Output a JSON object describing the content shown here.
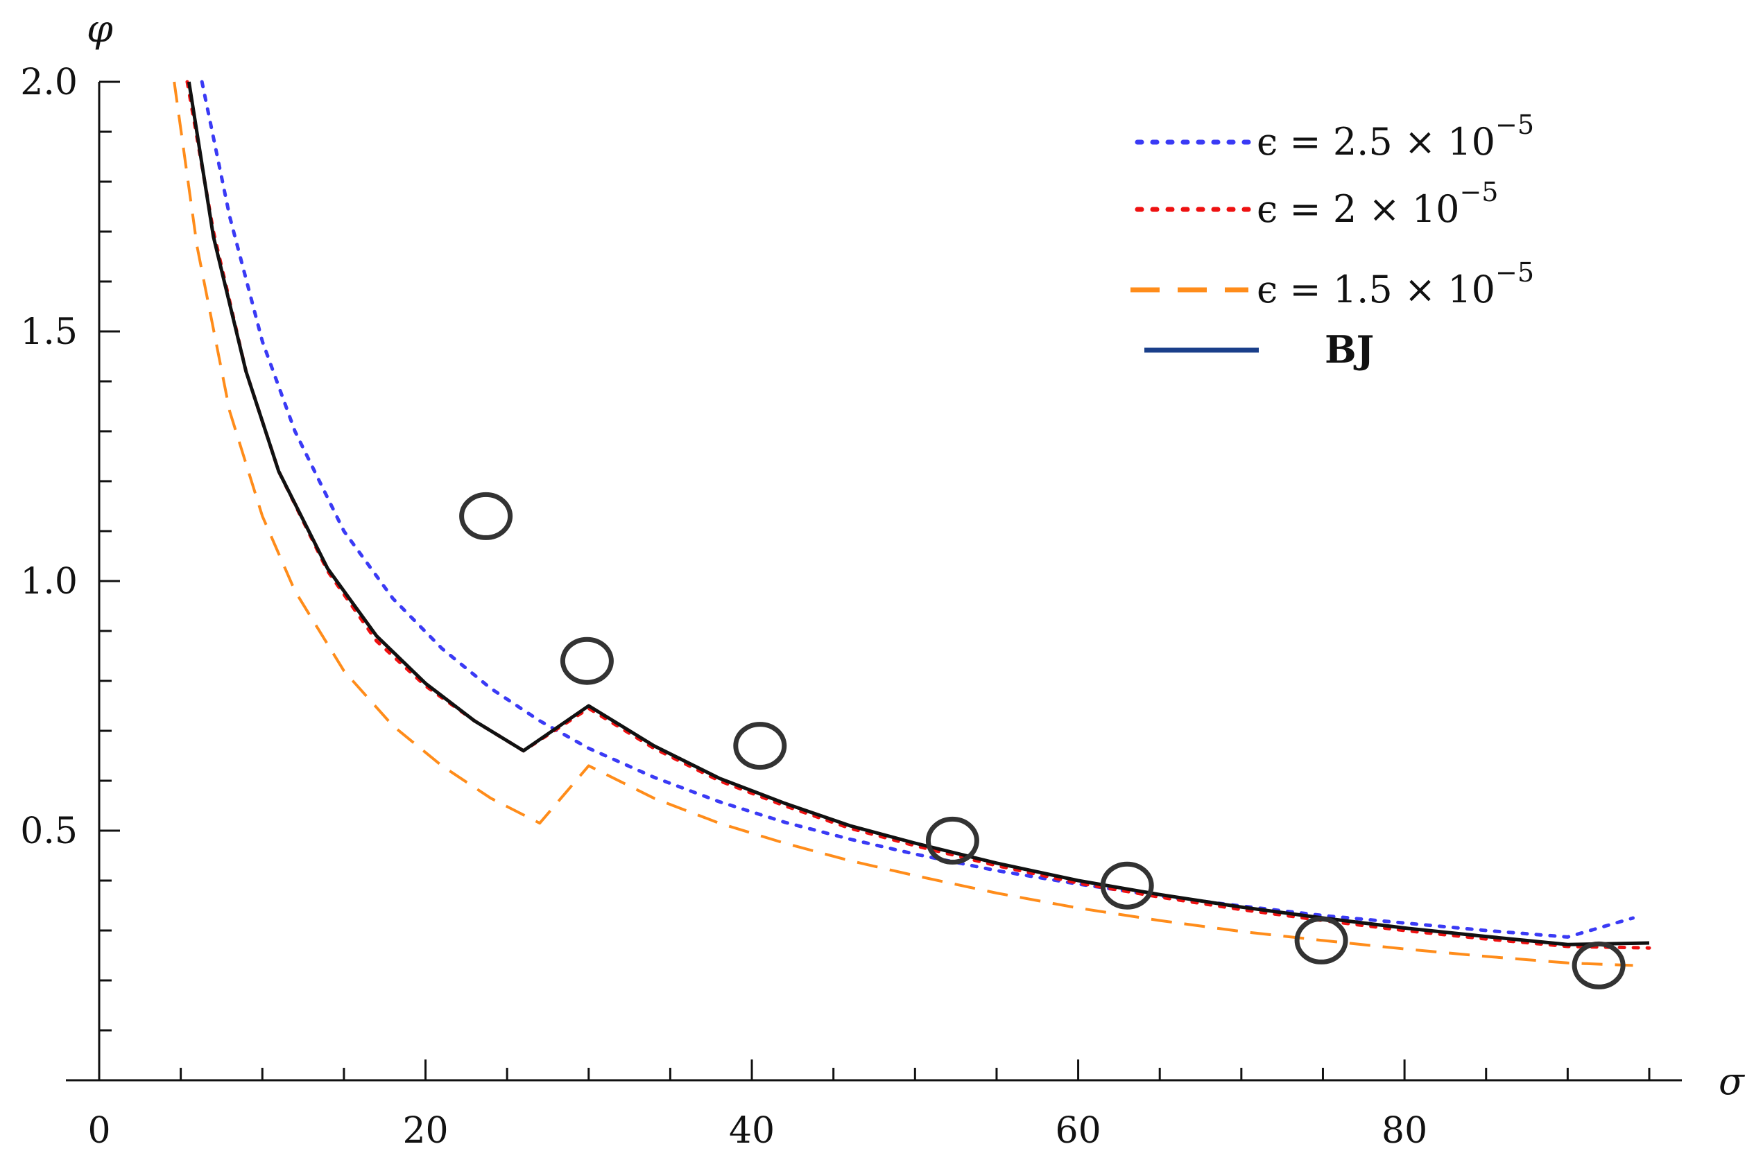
{
  "chart_data": {
    "type": "line",
    "title": "",
    "xlabel": "σ",
    "ylabel": "φ",
    "xlim": [
      0,
      95
    ],
    "ylim": [
      0,
      2.0
    ],
    "x_ticks": [
      0,
      20,
      40,
      60,
      80
    ],
    "x_tick_labels": [
      "0",
      "20",
      "40",
      "60",
      "80"
    ],
    "x_minor_step": 5,
    "y_ticks": [
      0.5,
      1.0,
      1.5,
      2.0
    ],
    "y_tick_labels": [
      "0.5",
      "1.0",
      "1.5",
      "2.0"
    ],
    "y_minor_step": 0.1,
    "grid": false,
    "legend_position": "top-right",
    "series": [
      {
        "name": "ε = 2.5 × 10−5",
        "legend_base": "ϵ = 2.5 × 10",
        "legend_sup": "−5",
        "color": "#3a3af5",
        "style": "dotted",
        "x": [
          6.3,
          8,
          10,
          12,
          15,
          18,
          21,
          24,
          27,
          30,
          34,
          38,
          42,
          46,
          50,
          55,
          60,
          65,
          70,
          75,
          80,
          85,
          90,
          94
        ],
        "y": [
          2.0,
          1.73,
          1.48,
          1.3,
          1.1,
          0.965,
          0.865,
          0.785,
          0.72,
          0.665,
          0.607,
          0.558,
          0.517,
          0.483,
          0.453,
          0.42,
          0.393,
          0.369,
          0.349,
          0.33,
          0.315,
          0.3,
          0.287,
          0.325
        ]
      },
      {
        "name": "ε = 2 × 10−5",
        "legend_base": "ϵ = 2 × 10",
        "legend_sup": "−5",
        "color": "#ee1111",
        "style": "dotted",
        "x": [
          5.4,
          7,
          9,
          11,
          14,
          17,
          20,
          23,
          26,
          30,
          34,
          38,
          42,
          46,
          50,
          55,
          60,
          65,
          70,
          75,
          80,
          85,
          90,
          95
        ],
        "y": [
          2.0,
          1.7,
          1.42,
          1.22,
          1.02,
          0.88,
          0.79,
          0.72,
          0.66,
          0.745,
          0.665,
          0.6,
          0.55,
          0.505,
          0.47,
          0.43,
          0.395,
          0.367,
          0.342,
          0.32,
          0.3,
          0.283,
          0.268,
          0.265
        ]
      },
      {
        "name": "ε = 1.5 × 10−5",
        "legend_base": "ϵ = 1.5 × 10",
        "legend_sup": "−5",
        "color": "#ff8c1a",
        "style": "dashed",
        "x": [
          4.6,
          6,
          8,
          10,
          12,
          15,
          18,
          21,
          24,
          27,
          30,
          34,
          38,
          42,
          46,
          50,
          55,
          60,
          65,
          70,
          75,
          80,
          85,
          90,
          94
        ],
        "y": [
          2.0,
          1.67,
          1.34,
          1.13,
          0.98,
          0.82,
          0.71,
          0.63,
          0.565,
          0.515,
          0.63,
          0.565,
          0.515,
          0.475,
          0.44,
          0.41,
          0.375,
          0.345,
          0.32,
          0.298,
          0.28,
          0.263,
          0.248,
          0.235,
          0.23
        ]
      },
      {
        "name": "BJ",
        "legend_base": "BJ",
        "legend_sup": "",
        "color": "#111111",
        "legend_color": "#1a3f8a",
        "style": "solid",
        "x": [
          5.5,
          7,
          9,
          11,
          14,
          17,
          20,
          23,
          26,
          30,
          34,
          38,
          42,
          46,
          50,
          55,
          60,
          65,
          70,
          75,
          80,
          85,
          90,
          95
        ],
        "y": [
          2.0,
          1.69,
          1.42,
          1.22,
          1.025,
          0.89,
          0.795,
          0.72,
          0.66,
          0.75,
          0.67,
          0.605,
          0.555,
          0.51,
          0.475,
          0.435,
          0.4,
          0.372,
          0.347,
          0.325,
          0.305,
          0.288,
          0.272,
          0.275
        ]
      }
    ],
    "markers": {
      "shape": "open-circle",
      "x": [
        23.7,
        29.9,
        40.5,
        52.3,
        63.0,
        74.9,
        91.9
      ],
      "y": [
        1.13,
        0.84,
        0.67,
        0.48,
        0.39,
        0.28,
        0.23
      ]
    }
  }
}
